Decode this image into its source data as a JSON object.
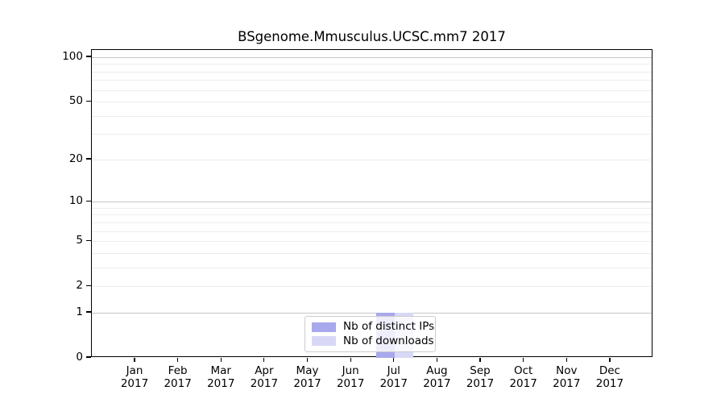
{
  "chart_data": {
    "type": "bar",
    "title": "BSgenome.Mmusculus.UCSC.mm7 2017",
    "categories": [
      "Jan",
      "Feb",
      "Mar",
      "Apr",
      "May",
      "Jun",
      "Jul",
      "Aug",
      "Sep",
      "Oct",
      "Nov",
      "Dec"
    ],
    "year_label": "2017",
    "series": [
      {
        "name": "Nb of distinct IPs",
        "color": "#a8a8ec",
        "values": [
          0,
          0,
          0,
          0,
          0,
          0,
          1,
          0,
          0,
          0,
          0,
          0
        ]
      },
      {
        "name": "Nb of downloads",
        "color": "#d8d8f6",
        "values": [
          0,
          0,
          0,
          0,
          0,
          0,
          1,
          0,
          0,
          0,
          0,
          0
        ]
      }
    ],
    "xlabel": "",
    "ylabel": "",
    "y_axis": {
      "scale": "log1p",
      "tick_values": [
        0,
        1,
        2,
        5,
        10,
        20,
        50,
        100
      ],
      "major_gridlines": [
        1,
        10,
        100
      ],
      "minor_gridlines": [
        2,
        3,
        4,
        5,
        6,
        7,
        8,
        9,
        20,
        30,
        40,
        50,
        60,
        70,
        80,
        90
      ],
      "ylim": [
        0,
        113
      ]
    },
    "legend": {
      "position": "bottom-center"
    },
    "colors": {
      "major_grid": "#c6c6c6",
      "minor_grid": "#ededed",
      "axis": "#000000",
      "legend_border": "#cccccc",
      "background": "#ffffff"
    }
  }
}
